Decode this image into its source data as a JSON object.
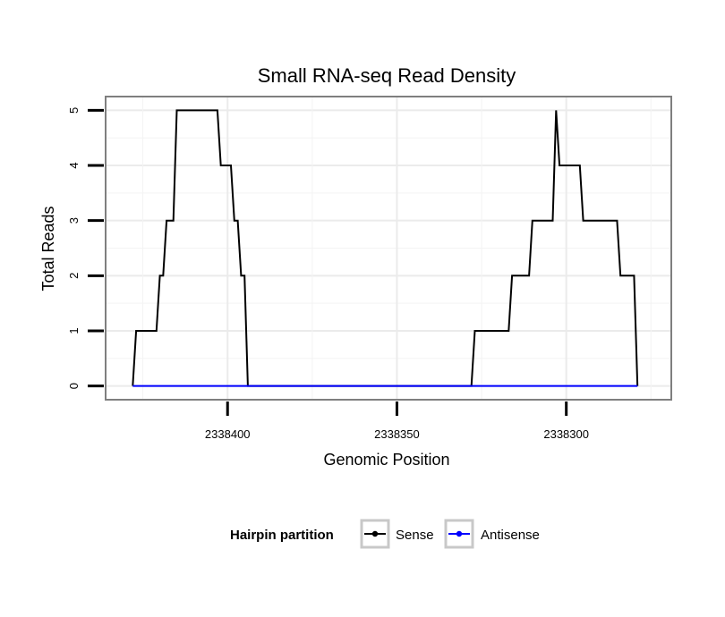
{
  "chart_data": {
    "type": "line",
    "title": "Small RNA-seq Read Density",
    "xlabel": "Genomic Position",
    "ylabel": "Total Reads",
    "xlim": [
      2338436,
      2338269
    ],
    "ylim": [
      -0.25,
      5.25
    ],
    "x_reversed": true,
    "x_ticks": [
      2338400,
      2338350,
      2338300
    ],
    "x_tick_labels": [
      "2338400",
      "2338350",
      "2338300"
    ],
    "y_ticks": [
      0,
      1,
      2,
      3,
      4,
      5
    ],
    "y_tick_labels": [
      "0",
      "1",
      "2",
      "3",
      "4",
      "5"
    ],
    "grid": true,
    "legend": {
      "title": "Hairpin partition",
      "position": "bottom",
      "entries": [
        "Sense",
        "Antisense"
      ]
    },
    "series": [
      {
        "name": "Sense",
        "color": "#000000",
        "points": [
          [
            2338428,
            0
          ],
          [
            2338427,
            1
          ],
          [
            2338421,
            1
          ],
          [
            2338420,
            2
          ],
          [
            2338419,
            2
          ],
          [
            2338418,
            3
          ],
          [
            2338416,
            3
          ],
          [
            2338415,
            5
          ],
          [
            2338403,
            5
          ],
          [
            2338402,
            4
          ],
          [
            2338399,
            4
          ],
          [
            2338398,
            3
          ],
          [
            2338397,
            3
          ],
          [
            2338396,
            2
          ],
          [
            2338395,
            2
          ],
          [
            2338394,
            0
          ],
          [
            2338328,
            0
          ],
          [
            2338327,
            1
          ],
          [
            2338317,
            1
          ],
          [
            2338316,
            2
          ],
          [
            2338311,
            2
          ],
          [
            2338310,
            3
          ],
          [
            2338304,
            3
          ],
          [
            2338303,
            5
          ],
          [
            2338302,
            4
          ],
          [
            2338296,
            4
          ],
          [
            2338295,
            3
          ],
          [
            2338285,
            3
          ],
          [
            2338284,
            2
          ],
          [
            2338280,
            2
          ],
          [
            2338279,
            0
          ]
        ]
      },
      {
        "name": "Antisense",
        "color": "#0000ff",
        "points": [
          [
            2338428,
            0
          ],
          [
            2338279,
            0
          ]
        ]
      }
    ]
  }
}
